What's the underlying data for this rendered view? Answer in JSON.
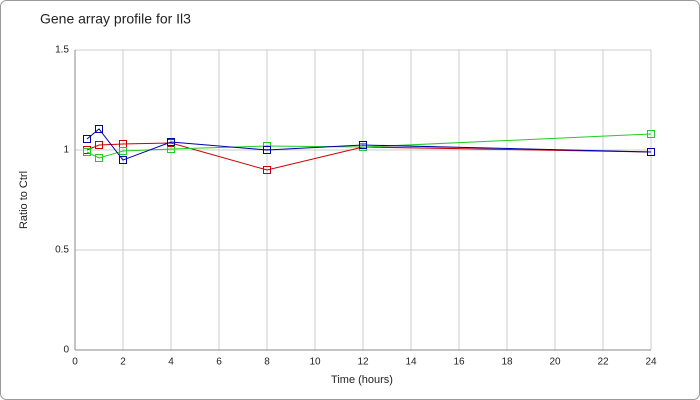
{
  "chart_data": {
    "type": "line",
    "title": "Gene array profile for Il3",
    "x_label": "Time (hours)",
    "y_label": "Ratio to Ctrl",
    "x": [
      0.5,
      1,
      2,
      4,
      8,
      12,
      24
    ],
    "series": [
      {
        "color": "#cc0000",
        "values": [
          1.0,
          1.025,
          1.03,
          1.035,
          0.9,
          1.015,
          0.99
        ]
      },
      {
        "color": "#22cc22",
        "values": [
          0.99,
          0.96,
          0.995,
          1.005,
          1.02,
          1.015,
          1.08
        ]
      },
      {
        "color": "#0000aa",
        "values": [
          1.055,
          1.105,
          0.95,
          1.04,
          1.0,
          1.025,
          0.99
        ]
      }
    ],
    "xlim": [
      0,
      24
    ],
    "xticks": [
      0,
      2,
      4,
      6,
      8,
      10,
      12,
      14,
      16,
      18,
      20,
      22,
      24
    ],
    "ylim": [
      0,
      1.5
    ],
    "yticks": [
      0,
      0.5,
      1,
      1.5
    ],
    "grid": true
  }
}
